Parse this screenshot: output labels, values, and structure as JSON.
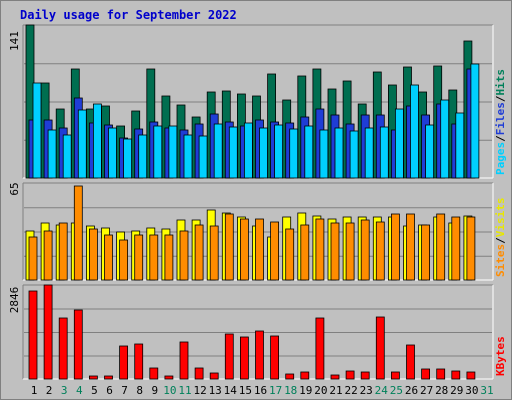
{
  "chart_data": {
    "type": "bar",
    "title": "Daily usage for September 2022",
    "categories": [
      "1",
      "2",
      "3",
      "4",
      "5",
      "6",
      "7",
      "8",
      "9",
      "10",
      "11",
      "12",
      "13",
      "14",
      "15",
      "16",
      "17",
      "18",
      "19",
      "20",
      "21",
      "22",
      "23",
      "24",
      "25",
      "26",
      "27",
      "28",
      "29",
      "30",
      "31"
    ],
    "weekend_days": [
      "3",
      "4",
      "10",
      "11",
      "17",
      "18",
      "24",
      "25",
      "31"
    ],
    "panels": [
      {
        "id": "hits-files-pages",
        "ymax_label": "141",
        "ylim": [
          0,
          141
        ],
        "grid": true,
        "side_labels": [
          "Pages",
          "/",
          "Files",
          "/",
          "Hits"
        ],
        "series": [
          {
            "name": "Hits",
            "color": "#006e50",
            "values": [
              141,
              88,
              64,
              100,
              64,
              66,
              48,
              62,
              100,
              76,
              67,
              56,
              79,
              80,
              77,
              76,
              96,
              72,
              94,
              100,
              82,
              89,
              68,
              98,
              86,
              102,
              79,
              103,
              81,
              126
            ]
          },
          {
            "name": "Files",
            "color": "#1f3dd6",
            "values": [
              53,
              53,
              46,
              74,
              51,
              49,
              37,
              45,
              52,
              46,
              44,
              50,
              59,
              52,
              48,
              53,
              52,
              51,
              56,
              64,
              58,
              50,
              58,
              58,
              44,
              66,
              58,
              68,
              50,
              100
            ]
          },
          {
            "name": "Pages",
            "color": "#00d0ff",
            "values": [
              88,
              44,
              40,
              63,
              68,
              46,
              36,
              40,
              48,
              48,
              40,
              39,
              50,
              47,
              51,
              46,
              49,
              45,
              48,
              44,
              46,
              43,
              46,
              47,
              64,
              86,
              49,
              72,
              60,
              105
            ]
          }
        ]
      },
      {
        "id": "visits-sites",
        "ymax_label": "65",
        "ylim": [
          0,
          65
        ],
        "grid": true,
        "side_labels": [
          "Sites",
          "/",
          "Visits"
        ],
        "series": [
          {
            "name": "Visits",
            "color": "#ffff00",
            "values": [
              33,
              38,
              37,
              38,
              36,
              35,
              32,
              33,
              35,
              34,
              40,
              40,
              47,
              45,
              42,
              36,
              29,
              42,
              45,
              43,
              41,
              42,
              42,
              42,
              42,
              36,
              37,
              42,
              38,
              43
            ]
          },
          {
            "name": "Sites",
            "color": "#ff8c00",
            "values": [
              29,
              33,
              38,
              63,
              34,
              30,
              27,
              30,
              30,
              30,
              33,
              37,
              36,
              44,
              41,
              41,
              39,
              34,
              37,
              41,
              38,
              38,
              40,
              39,
              44,
              44,
              37,
              44,
              42,
              42
            ]
          }
        ]
      },
      {
        "id": "kbytes",
        "ymax_label": "2846",
        "ylim": [
          0,
          2846
        ],
        "grid": true,
        "side_labels": [
          "KBytes"
        ],
        "series": [
          {
            "name": "KBytes",
            "color": "#ff0000",
            "values": [
              2660,
              2846,
              1850,
              2100,
              96,
              96,
              999,
              1051,
              335,
              79,
              1131,
              328,
              190,
              1364,
              1279,
              1459,
              1313,
              137,
              222,
              1849,
              133,
              232,
              213,
              1880,
              222,
              1044,
              299,
              289,
              250,
              219
            ]
          }
        ]
      }
    ]
  }
}
